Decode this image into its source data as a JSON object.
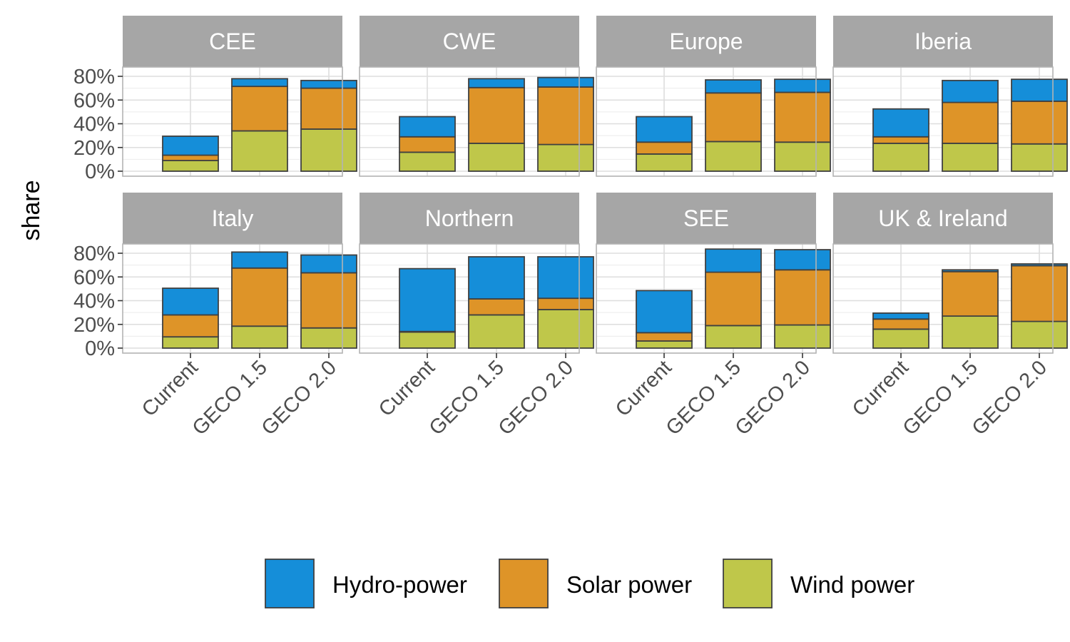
{
  "chart_data": {
    "type": "bar",
    "stacked": true,
    "facet_by": "region",
    "ylabel": "share",
    "ylim": [
      0,
      0.88
    ],
    "y_ticks": [
      0,
      0.2,
      0.4,
      0.6,
      0.8
    ],
    "y_tick_labels": [
      "0%",
      "20%",
      "40%",
      "60%",
      "80%"
    ],
    "categories": [
      "Current",
      "GECO 1.5",
      "GECO 2.0"
    ],
    "grid": true,
    "legend_position": "bottom",
    "series_order": [
      "Wind power",
      "Solar power",
      "Hydro-power"
    ],
    "legend": [
      {
        "name": "Hydro-power",
        "color": "#158ed9"
      },
      {
        "name": "Solar power",
        "color": "#de9428"
      },
      {
        "name": "Wind power",
        "color": "#bfc74a"
      }
    ],
    "panels": [
      {
        "region": "CEE",
        "series": {
          "Wind power": [
            0.09,
            0.34,
            0.355
          ],
          "Solar power": [
            0.045,
            0.375,
            0.345
          ],
          "Hydro-power": [
            0.16,
            0.065,
            0.065
          ]
        }
      },
      {
        "region": "CWE",
        "series": {
          "Wind power": [
            0.16,
            0.235,
            0.225
          ],
          "Solar power": [
            0.13,
            0.47,
            0.485
          ],
          "Hydro-power": [
            0.17,
            0.075,
            0.08
          ]
        }
      },
      {
        "region": "Europe",
        "series": {
          "Wind power": [
            0.145,
            0.25,
            0.245
          ],
          "Solar power": [
            0.1,
            0.41,
            0.42
          ],
          "Hydro-power": [
            0.215,
            0.11,
            0.11
          ]
        }
      },
      {
        "region": "Iberia",
        "series": {
          "Wind power": [
            0.235,
            0.235,
            0.23
          ],
          "Solar power": [
            0.055,
            0.345,
            0.36
          ],
          "Hydro-power": [
            0.235,
            0.185,
            0.185
          ]
        }
      },
      {
        "region": "Italy",
        "series": {
          "Wind power": [
            0.095,
            0.185,
            0.17
          ],
          "Solar power": [
            0.185,
            0.49,
            0.465
          ],
          "Hydro-power": [
            0.225,
            0.135,
            0.15
          ]
        }
      },
      {
        "region": "Northern",
        "series": {
          "Wind power": [
            0.135,
            0.28,
            0.325
          ],
          "Solar power": [
            0.005,
            0.135,
            0.095
          ],
          "Hydro-power": [
            0.53,
            0.355,
            0.35
          ]
        }
      },
      {
        "region": "SEE",
        "series": {
          "Wind power": [
            0.06,
            0.19,
            0.195
          ],
          "Solar power": [
            0.07,
            0.45,
            0.465
          ],
          "Hydro-power": [
            0.355,
            0.195,
            0.17
          ]
        }
      },
      {
        "region": "UK & Ireland",
        "series": {
          "Wind power": [
            0.16,
            0.27,
            0.225
          ],
          "Solar power": [
            0.085,
            0.375,
            0.47
          ],
          "Hydro-power": [
            0.05,
            0.015,
            0.015
          ]
        }
      }
    ]
  }
}
